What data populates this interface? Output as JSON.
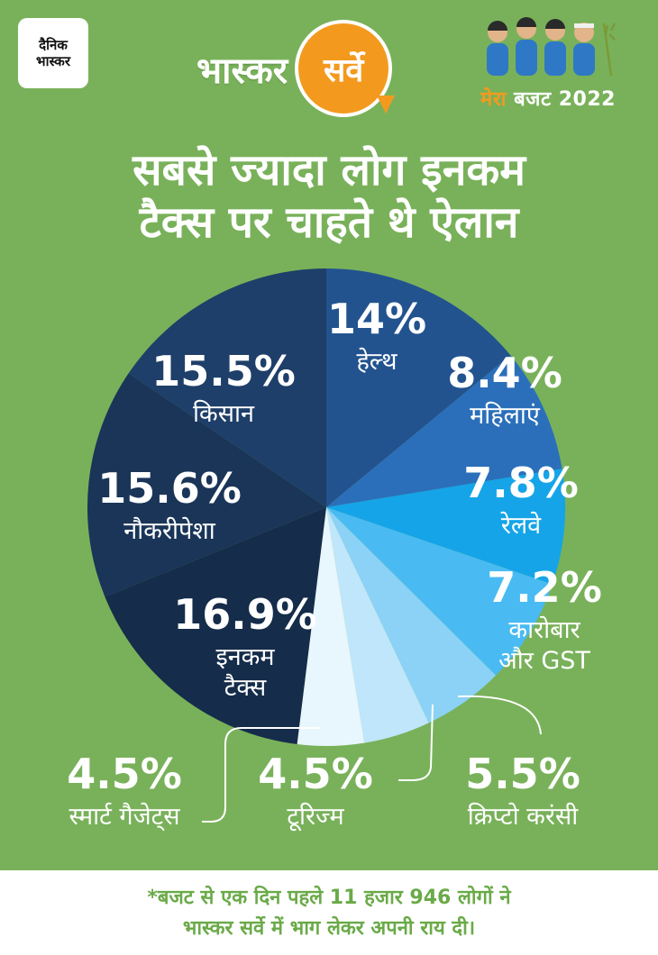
{
  "logo": {
    "line1": "दैनिक",
    "line2": "भास्कर"
  },
  "survey_brand": {
    "word": "भास्कर",
    "bubble": "सर्वे"
  },
  "badge": {
    "prefix": "मेरा",
    "rest": "बजट 2022"
  },
  "headline": {
    "line1": "सबसे ज्यादा लोग इनकम",
    "line2": "टैक्स पर चाहते थे ऐलान"
  },
  "chart_data": {
    "type": "pie",
    "slices": [
      {
        "value": 14,
        "value_label": "14%",
        "label_lines": [
          "हेल्थ"
        ],
        "color": "#22538f"
      },
      {
        "value": 8.4,
        "value_label": "8.4%",
        "label_lines": [
          "महिलाएं"
        ],
        "color": "#2b6fba"
      },
      {
        "value": 7.8,
        "value_label": "7.8%",
        "label_lines": [
          "रेलवे"
        ],
        "color": "#15a4e8"
      },
      {
        "value": 7.2,
        "value_label": "7.2%",
        "label_lines": [
          "कारोबार",
          "और GST"
        ],
        "color": "#49bbf2"
      },
      {
        "value": 5.5,
        "value_label": "5.5%",
        "label_lines": [
          "क्रिप्टो करंसी"
        ],
        "color": "#8bd2f6"
      },
      {
        "value": 4.5,
        "value_label": "4.5%",
        "label_lines": [
          "टूरिज्म"
        ],
        "color": "#bfe6fa"
      },
      {
        "value": 4.5,
        "value_label": "4.5%",
        "label_lines": [
          "स्मार्ट गैजेट्स"
        ],
        "color": "#e8f6fd"
      },
      {
        "value": 16.9,
        "value_label": "16.9%",
        "label_lines": [
          "इनकम",
          "टैक्स"
        ],
        "color": "#152c4a"
      },
      {
        "value": 15.6,
        "value_label": "15.6%",
        "label_lines": [
          "नौकरीपेशा"
        ],
        "color": "#1a3558"
      },
      {
        "value": 15.5,
        "value_label": "15.5%",
        "label_lines": [
          "किसान"
        ],
        "color": "#1e3f69"
      }
    ]
  },
  "footer": {
    "line1": "*बजट से एक दिन पहले 11 हजार 946 लोगों ने",
    "line2": "भास्कर सर्वे में भाग लेकर अपनी राय दी।"
  }
}
